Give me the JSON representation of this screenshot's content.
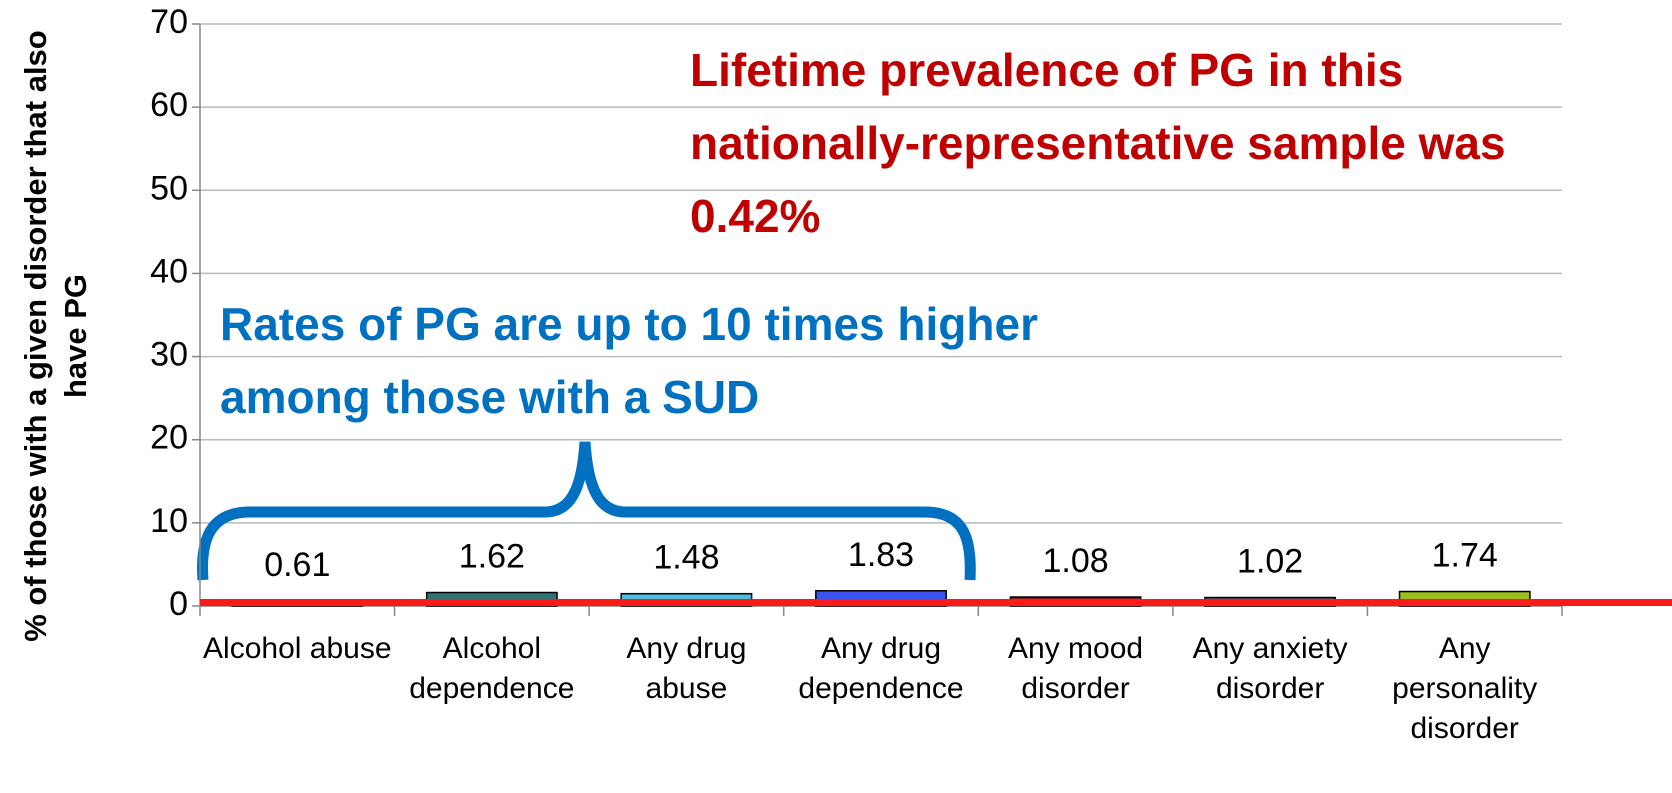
{
  "chart_data": {
    "type": "bar",
    "y_axis_label": "% of those with a given disorder that also have PG",
    "categories": [
      "Alcohol abuse",
      "Alcohol dependence",
      "Any drug abuse",
      "Any drug dependence",
      "Any mood disorder",
      "Any anxiety disorder",
      "Any personality disorder"
    ],
    "values": [
      0.61,
      1.62,
      1.48,
      1.83,
      1.08,
      1.02,
      1.74
    ],
    "colors": [
      "#1f3f4f",
      "#2e7474",
      "#4cc0dc",
      "#3a55f0",
      "#7a1a1a",
      "#555555",
      "#9cbf1a"
    ],
    "ylim": [
      0,
      70
    ],
    "yticks": [
      0,
      10,
      20,
      30,
      40,
      50,
      60,
      70
    ],
    "grid": true,
    "reference_value": 0.42,
    "reference_color": "#ff1a1a",
    "annotations": [
      {
        "text": "Lifetime prevalence of PG in this nationally-representative sample was 0.42%",
        "color": "#c00000"
      },
      {
        "text": "Rates of PG are up to 10 times higher among those with a SUD",
        "color": "#0070c0"
      }
    ]
  }
}
